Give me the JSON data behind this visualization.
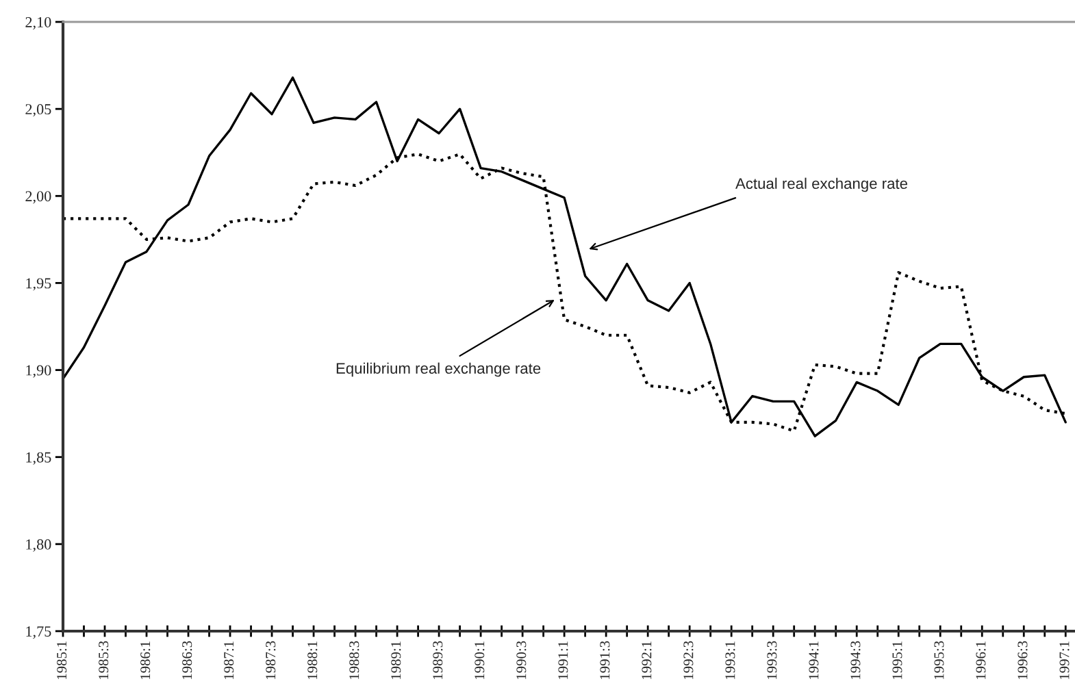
{
  "chart_data": {
    "type": "line",
    "categories": [
      "1985:1",
      null,
      "1985:3",
      null,
      "1986:1",
      null,
      "1986:3",
      null,
      "1987:1",
      null,
      "1987:3",
      null,
      "1988:1",
      null,
      "1988:3",
      null,
      "1989:1",
      null,
      "1989:3",
      null,
      "1990:1",
      null,
      "1990:3",
      null,
      "1991:1",
      null,
      "1991:3",
      null,
      "1992:1",
      null,
      "1992:3",
      null,
      "1993:1",
      null,
      "1993:3",
      null,
      "1994:1",
      null,
      "1994:3",
      null,
      "1995:1",
      null,
      "1995:3",
      null,
      "1996:1",
      null,
      "1996:3",
      null,
      "1997:1"
    ],
    "series": [
      {
        "color": "#000000",
        "line_style": "solid",
        "values": [
          1.895,
          1.913,
          1.937,
          1.962,
          1.968,
          1.986,
          1.995,
          2.023,
          2.038,
          2.059,
          2.047,
          2.068,
          2.042,
          2.045,
          2.044,
          2.054,
          2.02,
          2.044,
          2.036,
          2.05,
          2.016,
          2.014,
          2.009,
          2.004,
          1.999,
          1.954,
          1.94,
          1.961,
          1.94,
          1.934,
          1.95,
          1.915,
          1.87,
          1.885,
          1.882,
          1.882,
          1.862,
          1.871,
          1.893,
          1.888,
          1.88,
          1.907,
          1.915,
          1.915,
          1.896,
          1.888,
          1.896,
          1.897,
          1.87
        ]
      },
      {
        "color": "#000000",
        "line_style": "dotted",
        "values": [
          1.987,
          1.987,
          1.987,
          1.987,
          1.975,
          1.976,
          1.974,
          1.976,
          1.985,
          1.987,
          1.985,
          1.987,
          2.007,
          2.008,
          2.006,
          2.012,
          2.022,
          2.024,
          2.02,
          2.024,
          2.01,
          2.016,
          2.013,
          2.011,
          1.929,
          1.925,
          1.92,
          1.92,
          1.891,
          1.89,
          1.887,
          1.893,
          1.87,
          1.87,
          1.869,
          1.865,
          1.903,
          1.902,
          1.898,
          1.898,
          1.956,
          1.951,
          1.947,
          1.948,
          1.894,
          1.888,
          1.885,
          1.877,
          1.875
        ]
      }
    ],
    "ylim": [
      1.75,
      2.1
    ],
    "yticks": [
      {
        "value": 1.75,
        "label": "1,75"
      },
      {
        "value": 1.8,
        "label": "1,80"
      },
      {
        "value": 1.85,
        "label": "1,85"
      },
      {
        "value": 1.9,
        "label": "1,90"
      },
      {
        "value": 1.95,
        "label": "1,95"
      },
      {
        "value": 2.0,
        "label": "2,00"
      },
      {
        "value": 2.05,
        "label": "2,05"
      },
      {
        "value": 2.1,
        "label": "2,10"
      }
    ],
    "annotations": [
      "Actual real exchange rate",
      "Equilibrium real exchange rate"
    ],
    "grid": false,
    "legend": false
  }
}
